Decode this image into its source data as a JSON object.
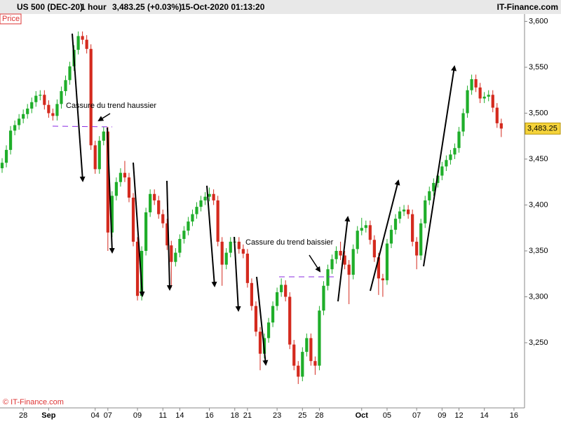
{
  "chart_data": {
    "type": "candlestick",
    "header": {
      "symbol": "US 500 (DEC-20)",
      "interval": "1 hour",
      "quote": "3,483.25 (+0.03%)",
      "datetime": "15-Oct-2020 01:13:20",
      "brand": "IT-Finance.com"
    },
    "panel_label": "Price",
    "footer": "© IT-Finance.com",
    "annotations": [
      "Cassure du trend haussier",
      "Cassure du trend baissier"
    ],
    "up_color": "#1fae2a",
    "down_color": "#d42a1e",
    "last_price": {
      "value": 3483.25,
      "label": "3,483.25"
    },
    "ylim": [
      3179,
      3608
    ],
    "yticks": [
      {
        "value": 3250,
        "label": "3,250"
      },
      {
        "value": 3300,
        "label": "3,300"
      },
      {
        "value": 3350,
        "label": "3,350"
      },
      {
        "value": 3400,
        "label": "3,400"
      },
      {
        "value": 3450,
        "label": "3,450"
      },
      {
        "value": 3500,
        "label": "3,500"
      },
      {
        "value": 3550,
        "label": "3,550"
      },
      {
        "value": 3600,
        "label": "3,600"
      }
    ],
    "categories": [
      null,
      null,
      null,
      null,
      null,
      "28",
      null,
      null,
      null,
      null,
      null,
      "Sep",
      null,
      null,
      null,
      null,
      null,
      null,
      null,
      null,
      null,
      null,
      "04",
      null,
      null,
      "07",
      null,
      null,
      null,
      null,
      null,
      null,
      "09",
      null,
      null,
      null,
      null,
      null,
      "11",
      null,
      null,
      null,
      "14",
      null,
      null,
      null,
      null,
      null,
      null,
      "16",
      null,
      null,
      null,
      null,
      null,
      "18",
      null,
      null,
      "21",
      null,
      null,
      null,
      null,
      null,
      null,
      "23",
      null,
      null,
      null,
      null,
      null,
      "25",
      null,
      null,
      null,
      "28",
      null,
      null,
      null,
      null,
      null,
      null,
      null,
      null,
      null,
      "Oct",
      null,
      null,
      null,
      null,
      null,
      "05",
      null,
      null,
      null,
      null,
      null,
      null,
      "07",
      null,
      null,
      null,
      null,
      null,
      "09",
      null,
      null,
      null,
      "12",
      null,
      null,
      null,
      null,
      null,
      "14",
      null,
      null,
      null,
      null,
      null,
      null,
      "16",
      null,
      null
    ],
    "open": [
      3440,
      3446,
      3460,
      3481,
      3487,
      3494,
      3499,
      3505,
      3512,
      3519,
      3520,
      3509,
      3500,
      3497,
      3510,
      3524,
      3536,
      3551,
      3569,
      3584,
      3580,
      3570,
      3465,
      3439,
      3470,
      3480,
      3370,
      3410,
      3425,
      3435,
      3430,
      3408,
      3360,
      3301,
      3350,
      3392,
      3412,
      3405,
      3390,
      3380,
      3356,
      3338,
      3348,
      3363,
      3372,
      3382,
      3390,
      3398,
      3405,
      3409,
      3412,
      3405,
      3360,
      3335,
      3348,
      3360,
      3360,
      3352,
      3347,
      3315,
      3290,
      3262,
      3238,
      3255,
      3272,
      3290,
      3305,
      3313,
      3300,
      3248,
      3225,
      3213,
      3240,
      3255,
      3230,
      3225,
      3285,
      3312,
      3330,
      3341,
      3350,
      3345,
      3335,
      3324,
      3352,
      3372,
      3375,
      3378,
      3362,
      3343,
      3320,
      3318,
      3358,
      3373,
      3385,
      3393,
      3395,
      3390,
      3360,
      3345,
      3380,
      3405,
      3415,
      3424,
      3432,
      3442,
      3449,
      3455,
      3462,
      3480,
      3500,
      3525,
      3537,
      3528,
      3516,
      3518,
      3520,
      3506,
      3489,
      null,
      null,
      null,
      null,
      null
    ],
    "high": [
      3451,
      3465,
      3486,
      3492,
      3499,
      3504,
      3510,
      3517,
      3524,
      3525,
      3525,
      3514,
      3505,
      3515,
      3529,
      3541,
      3556,
      3574,
      3589,
      3589,
      3585,
      3575,
      3470,
      3475,
      3485,
      3485,
      3415,
      3430,
      3440,
      3448,
      3435,
      3413,
      3365,
      3355,
      3397,
      3417,
      3417,
      3410,
      3395,
      3385,
      3361,
      3353,
      3368,
      3377,
      3387,
      3395,
      3403,
      3410,
      3414,
      3419,
      3417,
      3410,
      3365,
      3353,
      3365,
      3365,
      3365,
      3357,
      3352,
      3320,
      3295,
      3267,
      3260,
      3277,
      3295,
      3310,
      3320,
      3318,
      3305,
      3253,
      3230,
      3245,
      3260,
      3260,
      3235,
      3290,
      3317,
      3335,
      3346,
      3355,
      3360,
      3350,
      3340,
      3357,
      3377,
      3386,
      3383,
      3383,
      3367,
      3348,
      3325,
      3363,
      3378,
      3390,
      3398,
      3400,
      3400,
      3395,
      3365,
      3385,
      3410,
      3420,
      3429,
      3437,
      3447,
      3454,
      3460,
      3467,
      3485,
      3505,
      3530,
      3542,
      3542,
      3533,
      3523,
      3525,
      3525,
      3511,
      3494,
      null,
      null,
      null,
      null,
      null
    ],
    "low": [
      3435,
      3441,
      3455,
      3476,
      3482,
      3489,
      3494,
      3500,
      3507,
      3514,
      3504,
      3495,
      3492,
      3492,
      3505,
      3519,
      3531,
      3546,
      3564,
      3575,
      3565,
      3460,
      3434,
      3434,
      3465,
      3350,
      3365,
      3405,
      3420,
      3425,
      3403,
      3355,
      3296,
      3296,
      3345,
      3387,
      3400,
      3385,
      3375,
      3351,
      3310,
      3333,
      3343,
      3358,
      3367,
      3377,
      3385,
      3393,
      3400,
      3404,
      3400,
      3355,
      3312,
      3330,
      3343,
      3355,
      3347,
      3342,
      3310,
      3285,
      3257,
      3220,
      3233,
      3250,
      3267,
      3285,
      3300,
      3295,
      3243,
      3220,
      3205,
      3208,
      3235,
      3225,
      3215,
      3220,
      3280,
      3307,
      3325,
      3336,
      3340,
      3330,
      3292,
      3319,
      3347,
      3367,
      3370,
      3357,
      3338,
      3302,
      3300,
      3313,
      3353,
      3368,
      3380,
      3388,
      3385,
      3355,
      3330,
      3340,
      3375,
      3400,
      3410,
      3419,
      3427,
      3437,
      3444,
      3450,
      3457,
      3475,
      3495,
      3520,
      3523,
      3511,
      3511,
      3513,
      3501,
      3484,
      3474,
      null,
      null,
      null,
      null,
      null
    ],
    "close": [
      3446,
      3460,
      3481,
      3487,
      3494,
      3499,
      3505,
      3512,
      3519,
      3520,
      3509,
      3500,
      3497,
      3510,
      3524,
      3536,
      3551,
      3569,
      3584,
      3580,
      3570,
      3465,
      3439,
      3470,
      3480,
      3370,
      3410,
      3425,
      3435,
      3430,
      3408,
      3360,
      3301,
      3350,
      3392,
      3412,
      3405,
      3390,
      3380,
      3356,
      3338,
      3348,
      3363,
      3372,
      3382,
      3390,
      3398,
      3405,
      3409,
      3412,
      3405,
      3360,
      3335,
      3348,
      3360,
      3360,
      3352,
      3347,
      3315,
      3290,
      3262,
      3238,
      3255,
      3272,
      3290,
      3305,
      3313,
      3300,
      3248,
      3225,
      3213,
      3240,
      3255,
      3230,
      3225,
      3285,
      3312,
      3330,
      3341,
      3350,
      3345,
      3335,
      3324,
      3352,
      3372,
      3375,
      3378,
      3362,
      3343,
      3320,
      3318,
      3358,
      3373,
      3385,
      3393,
      3395,
      3390,
      3360,
      3345,
      3380,
      3405,
      3415,
      3424,
      3432,
      3442,
      3449,
      3455,
      3462,
      3480,
      3500,
      3525,
      3537,
      3528,
      3516,
      3518,
      3520,
      3506,
      3489,
      3483.25,
      null,
      null,
      null,
      null,
      null
    ]
  }
}
